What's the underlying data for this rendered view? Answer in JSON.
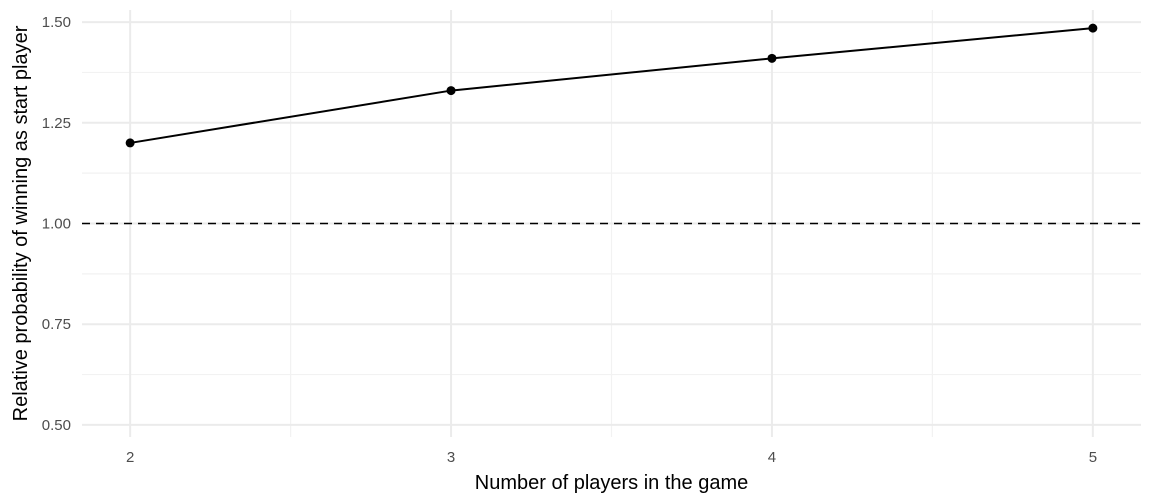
{
  "chart_data": {
    "type": "line",
    "title": "",
    "xlabel": "Number of players in the game",
    "ylabel": "Relative probability of winning as start player",
    "x": [
      2,
      3,
      4,
      5
    ],
    "series": [
      {
        "values": [
          1.2,
          1.33,
          1.41,
          1.485
        ]
      }
    ],
    "x_ticks": [
      2,
      3,
      4,
      5
    ],
    "y_ticks": [
      0.5,
      0.75,
      1.0,
      1.25,
      1.5
    ],
    "x_tick_labels": [
      "2",
      "3",
      "4",
      "5"
    ],
    "y_tick_labels": [
      "0.50",
      "0.75",
      "1.00",
      "1.25",
      "1.50"
    ],
    "xlim": [
      1.85,
      5.15
    ],
    "ylim": [
      0.47,
      1.53
    ],
    "reference_line": {
      "y": 1.0,
      "style": "dashed"
    },
    "grid": true,
    "legend": "none",
    "colors": {
      "line": "#000000",
      "points": "#000000",
      "grid_major": "#ebebeb",
      "grid_minor": "#f2f2f2",
      "tick_text": "#4d4d4d"
    }
  }
}
